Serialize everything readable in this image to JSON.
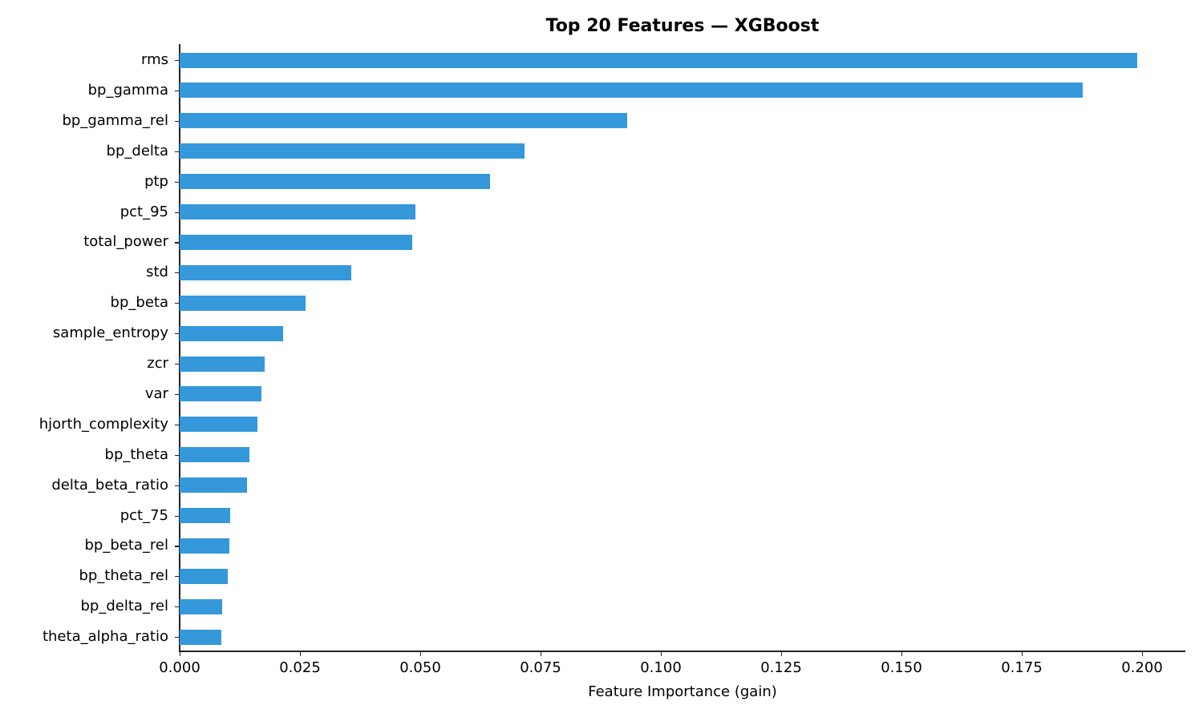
{
  "chart_data": {
    "type": "bar",
    "orientation": "horizontal",
    "title": "Top 20 Features — XGBoost",
    "xlabel": "Feature Importance (gain)",
    "ylabel": "",
    "xlim": [
      0,
      0.209
    ],
    "xticks": [
      "0.000",
      "0.025",
      "0.050",
      "0.075",
      "0.100",
      "0.125",
      "0.150",
      "0.175",
      "0.200"
    ],
    "grid": false,
    "legend": null,
    "bar_color": "#3498db",
    "categories": [
      "rms",
      "bp_gamma",
      "bp_gamma_rel",
      "bp_delta",
      "ptp",
      "pct_95",
      "total_power",
      "std",
      "bp_beta",
      "sample_entropy",
      "zcr",
      "var",
      "hjorth_complexity",
      "bp_theta",
      "delta_beta_ratio",
      "pct_75",
      "bp_beta_rel",
      "bp_theta_rel",
      "bp_delta_rel",
      "theta_alpha_ratio"
    ],
    "values": [
      0.199,
      0.1877,
      0.093,
      0.0717,
      0.0645,
      0.049,
      0.0483,
      0.0357,
      0.0262,
      0.0215,
      0.0177,
      0.017,
      0.0162,
      0.0145,
      0.014,
      0.0105,
      0.0103,
      0.01,
      0.0088,
      0.0087
    ]
  }
}
